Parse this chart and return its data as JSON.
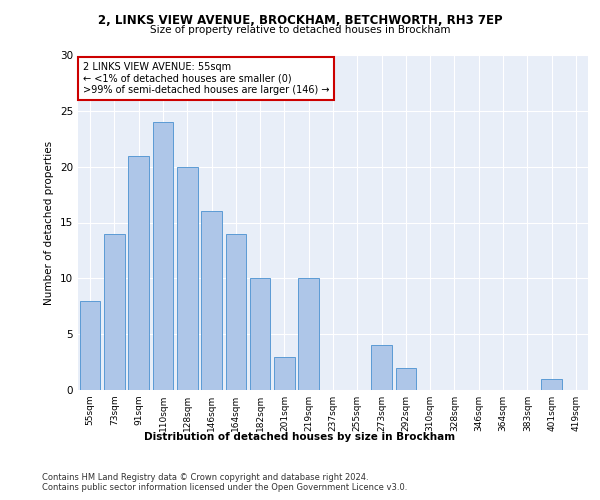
{
  "title1": "2, LINKS VIEW AVENUE, BROCKHAM, BETCHWORTH, RH3 7EP",
  "title2": "Size of property relative to detached houses in Brockham",
  "xlabel": "Distribution of detached houses by size in Brockham",
  "ylabel": "Number of detached properties",
  "categories": [
    "55sqm",
    "73sqm",
    "91sqm",
    "110sqm",
    "128sqm",
    "146sqm",
    "164sqm",
    "182sqm",
    "201sqm",
    "219sqm",
    "237sqm",
    "255sqm",
    "273sqm",
    "292sqm",
    "310sqm",
    "328sqm",
    "346sqm",
    "364sqm",
    "383sqm",
    "401sqm",
    "419sqm"
  ],
  "values": [
    8,
    14,
    21,
    24,
    20,
    16,
    14,
    10,
    3,
    10,
    0,
    0,
    4,
    2,
    0,
    0,
    0,
    0,
    0,
    1,
    0
  ],
  "bar_color": "#aec6e8",
  "bar_edge_color": "#5b9bd5",
  "annotation_text": "2 LINKS VIEW AVENUE: 55sqm\n← <1% of detached houses are smaller (0)\n>99% of semi-detached houses are larger (146) →",
  "annotation_box_color": "#ffffff",
  "annotation_box_edge": "#cc0000",
  "footer1": "Contains HM Land Registry data © Crown copyright and database right 2024.",
  "footer2": "Contains public sector information licensed under the Open Government Licence v3.0.",
  "background_color": "#e8eef8",
  "ylim": [
    0,
    30
  ],
  "yticks": [
    0,
    5,
    10,
    15,
    20,
    25,
    30
  ]
}
